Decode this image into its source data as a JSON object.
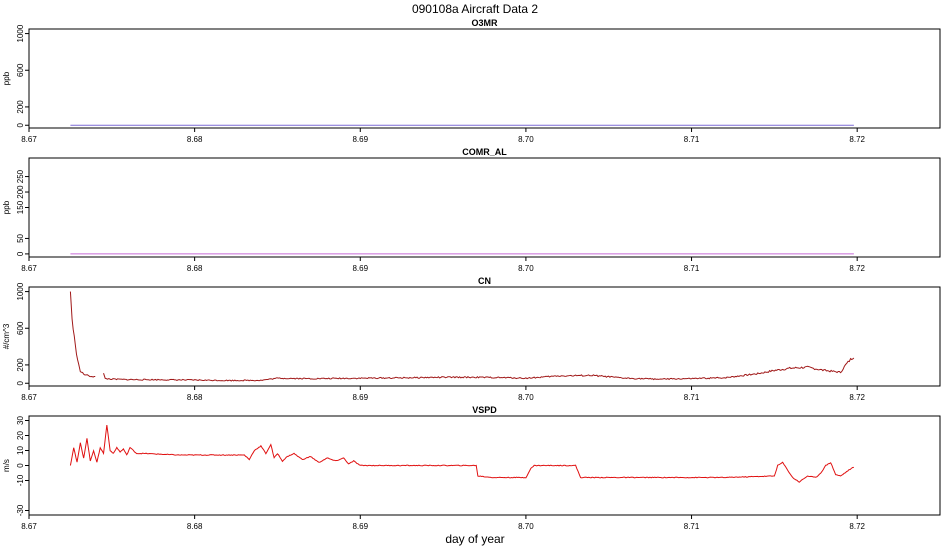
{
  "figure": {
    "title": "090108a   Aircraft Data 2",
    "xlabel": "day of year"
  },
  "chart_data": [
    {
      "type": "line",
      "title": "O3MR",
      "ylabel": "ppb",
      "xlim": [
        8.67,
        8.725
      ],
      "ylim": [
        -30,
        1050
      ],
      "xticks": [
        8.67,
        8.68,
        8.69,
        8.7,
        8.71,
        8.72
      ],
      "xtick_labels": [
        "8.67",
        "8.68",
        "8.69",
        "8.70",
        "8.71",
        "8.72"
      ],
      "yticks": [
        0,
        200,
        600,
        1000
      ],
      "ytick_labels": [
        "0",
        "200",
        "600",
        "1000"
      ],
      "series": [
        {
          "color": "#7d6bd6",
          "x": [
            8.6725,
            8.7198
          ],
          "y": [
            0,
            0
          ]
        }
      ]
    },
    {
      "type": "line",
      "title": "COMR_AL",
      "ylabel": "ppb",
      "xlim": [
        8.67,
        8.725
      ],
      "ylim": [
        -10,
        310
      ],
      "xticks": [
        8.67,
        8.68,
        8.69,
        8.7,
        8.71,
        8.72
      ],
      "xtick_labels": [
        "8.67",
        "8.68",
        "8.69",
        "8.70",
        "8.71",
        "8.72"
      ],
      "yticks": [
        0,
        50,
        150,
        200,
        250
      ],
      "ytick_labels": [
        "0",
        "50",
        "150",
        "200",
        "250"
      ],
      "series": [
        {
          "color": "#c86ad8",
          "x": [
            8.6725,
            8.7198
          ],
          "y": [
            0,
            0
          ]
        }
      ]
    },
    {
      "type": "line",
      "title": "CN",
      "ylabel": "#/cm^3",
      "xlim": [
        8.67,
        8.725
      ],
      "ylim": [
        -30,
        1050
      ],
      "xticks": [
        8.67,
        8.68,
        8.69,
        8.7,
        8.71,
        8.72
      ],
      "xtick_labels": [
        "8.67",
        "8.68",
        "8.69",
        "8.70",
        "8.71",
        "8.72"
      ],
      "yticks": [
        0,
        200,
        600,
        1000
      ],
      "ytick_labels": [
        "0",
        "200",
        "600",
        "1000"
      ],
      "series": [
        {
          "color": "#a01818",
          "x": [
            8.6725,
            8.6726,
            8.6728,
            8.673,
            8.6731,
            8.6733,
            8.6736,
            8.674
          ],
          "y": [
            1000,
            700,
            400,
            200,
            130,
            100,
            80,
            70
          ]
        },
        {
          "color": "#a01818",
          "x": [
            8.6745,
            8.6746,
            8.675,
            8.676,
            8.678,
            8.68,
            8.682,
            8.684,
            8.685,
            8.687,
            8.69,
            8.693,
            8.695,
            8.697,
            8.699,
            8.7,
            8.702,
            8.704,
            8.706,
            8.708,
            8.71,
            8.712,
            8.714,
            8.715,
            8.716,
            8.717,
            8.718,
            8.719,
            8.7193,
            8.7196,
            8.7198
          ],
          "y": [
            110,
            50,
            45,
            40,
            38,
            35,
            30,
            32,
            55,
            50,
            55,
            60,
            65,
            65,
            60,
            55,
            80,
            85,
            55,
            45,
            50,
            60,
            105,
            140,
            165,
            175,
            140,
            120,
            200,
            260,
            290
          ]
        }
      ]
    },
    {
      "type": "line",
      "title": "VSPD",
      "ylabel": "m/s",
      "xlim": [
        8.67,
        8.725
      ],
      "ylim": [
        -33,
        33
      ],
      "xticks": [
        8.67,
        8.68,
        8.69,
        8.7,
        8.71,
        8.72
      ],
      "xtick_labels": [
        "8.67",
        "8.68",
        "8.69",
        "8.70",
        "8.71",
        "8.72"
      ],
      "yticks": [
        -30,
        -10,
        0,
        10,
        20,
        30
      ],
      "ytick_labels": [
        "-30",
        "-10",
        "0",
        "10",
        "20",
        "30"
      ],
      "series": [
        {
          "color": "#e01010",
          "x": [
            8.6725,
            8.6727,
            8.6729,
            8.6731,
            8.6733,
            8.6735,
            8.6737,
            8.6739,
            8.6741,
            8.6743,
            8.6745,
            8.6747,
            8.6749,
            8.6751,
            8.6753,
            8.6755,
            8.6757,
            8.6759,
            8.6761,
            8.6765,
            8.677,
            8.679,
            8.681,
            8.683,
            8.6833,
            8.6836,
            8.684,
            8.6843,
            8.6846,
            8.6848,
            8.685,
            8.6853,
            8.6856,
            8.686,
            8.6865,
            8.687,
            8.6875,
            8.688,
            8.6885,
            8.689,
            8.6893,
            8.6896,
            8.69,
            8.692,
            8.695,
            8.697,
            8.6971,
            8.698,
            8.7,
            8.7003,
            8.7005,
            8.701,
            8.702,
            8.703,
            8.7033,
            8.704,
            8.708,
            8.712,
            8.715,
            8.7152,
            8.7155,
            8.7158,
            8.7161,
            8.7165,
            8.717,
            8.7175,
            8.7178,
            8.7181,
            8.7184,
            8.7187,
            8.719,
            8.7195,
            8.7198
          ],
          "y": [
            0,
            12,
            2,
            15,
            5,
            18,
            3,
            10,
            2,
            12,
            8,
            27,
            10,
            8,
            12,
            9,
            11,
            7,
            12,
            8,
            8,
            7,
            7,
            7,
            4,
            10,
            13,
            8,
            14,
            5,
            8,
            3,
            6,
            8,
            4,
            6,
            2,
            5,
            3,
            5,
            1,
            3,
            0,
            0,
            0,
            0,
            -7,
            -8,
            -8,
            -2,
            0,
            0,
            0,
            0,
            -8,
            -8,
            -8,
            -8,
            -7,
            0,
            2,
            -3,
            -8,
            -11,
            -7,
            -8,
            -5,
            0,
            2,
            -6,
            -7,
            -3,
            -1
          ]
        }
      ]
    }
  ]
}
